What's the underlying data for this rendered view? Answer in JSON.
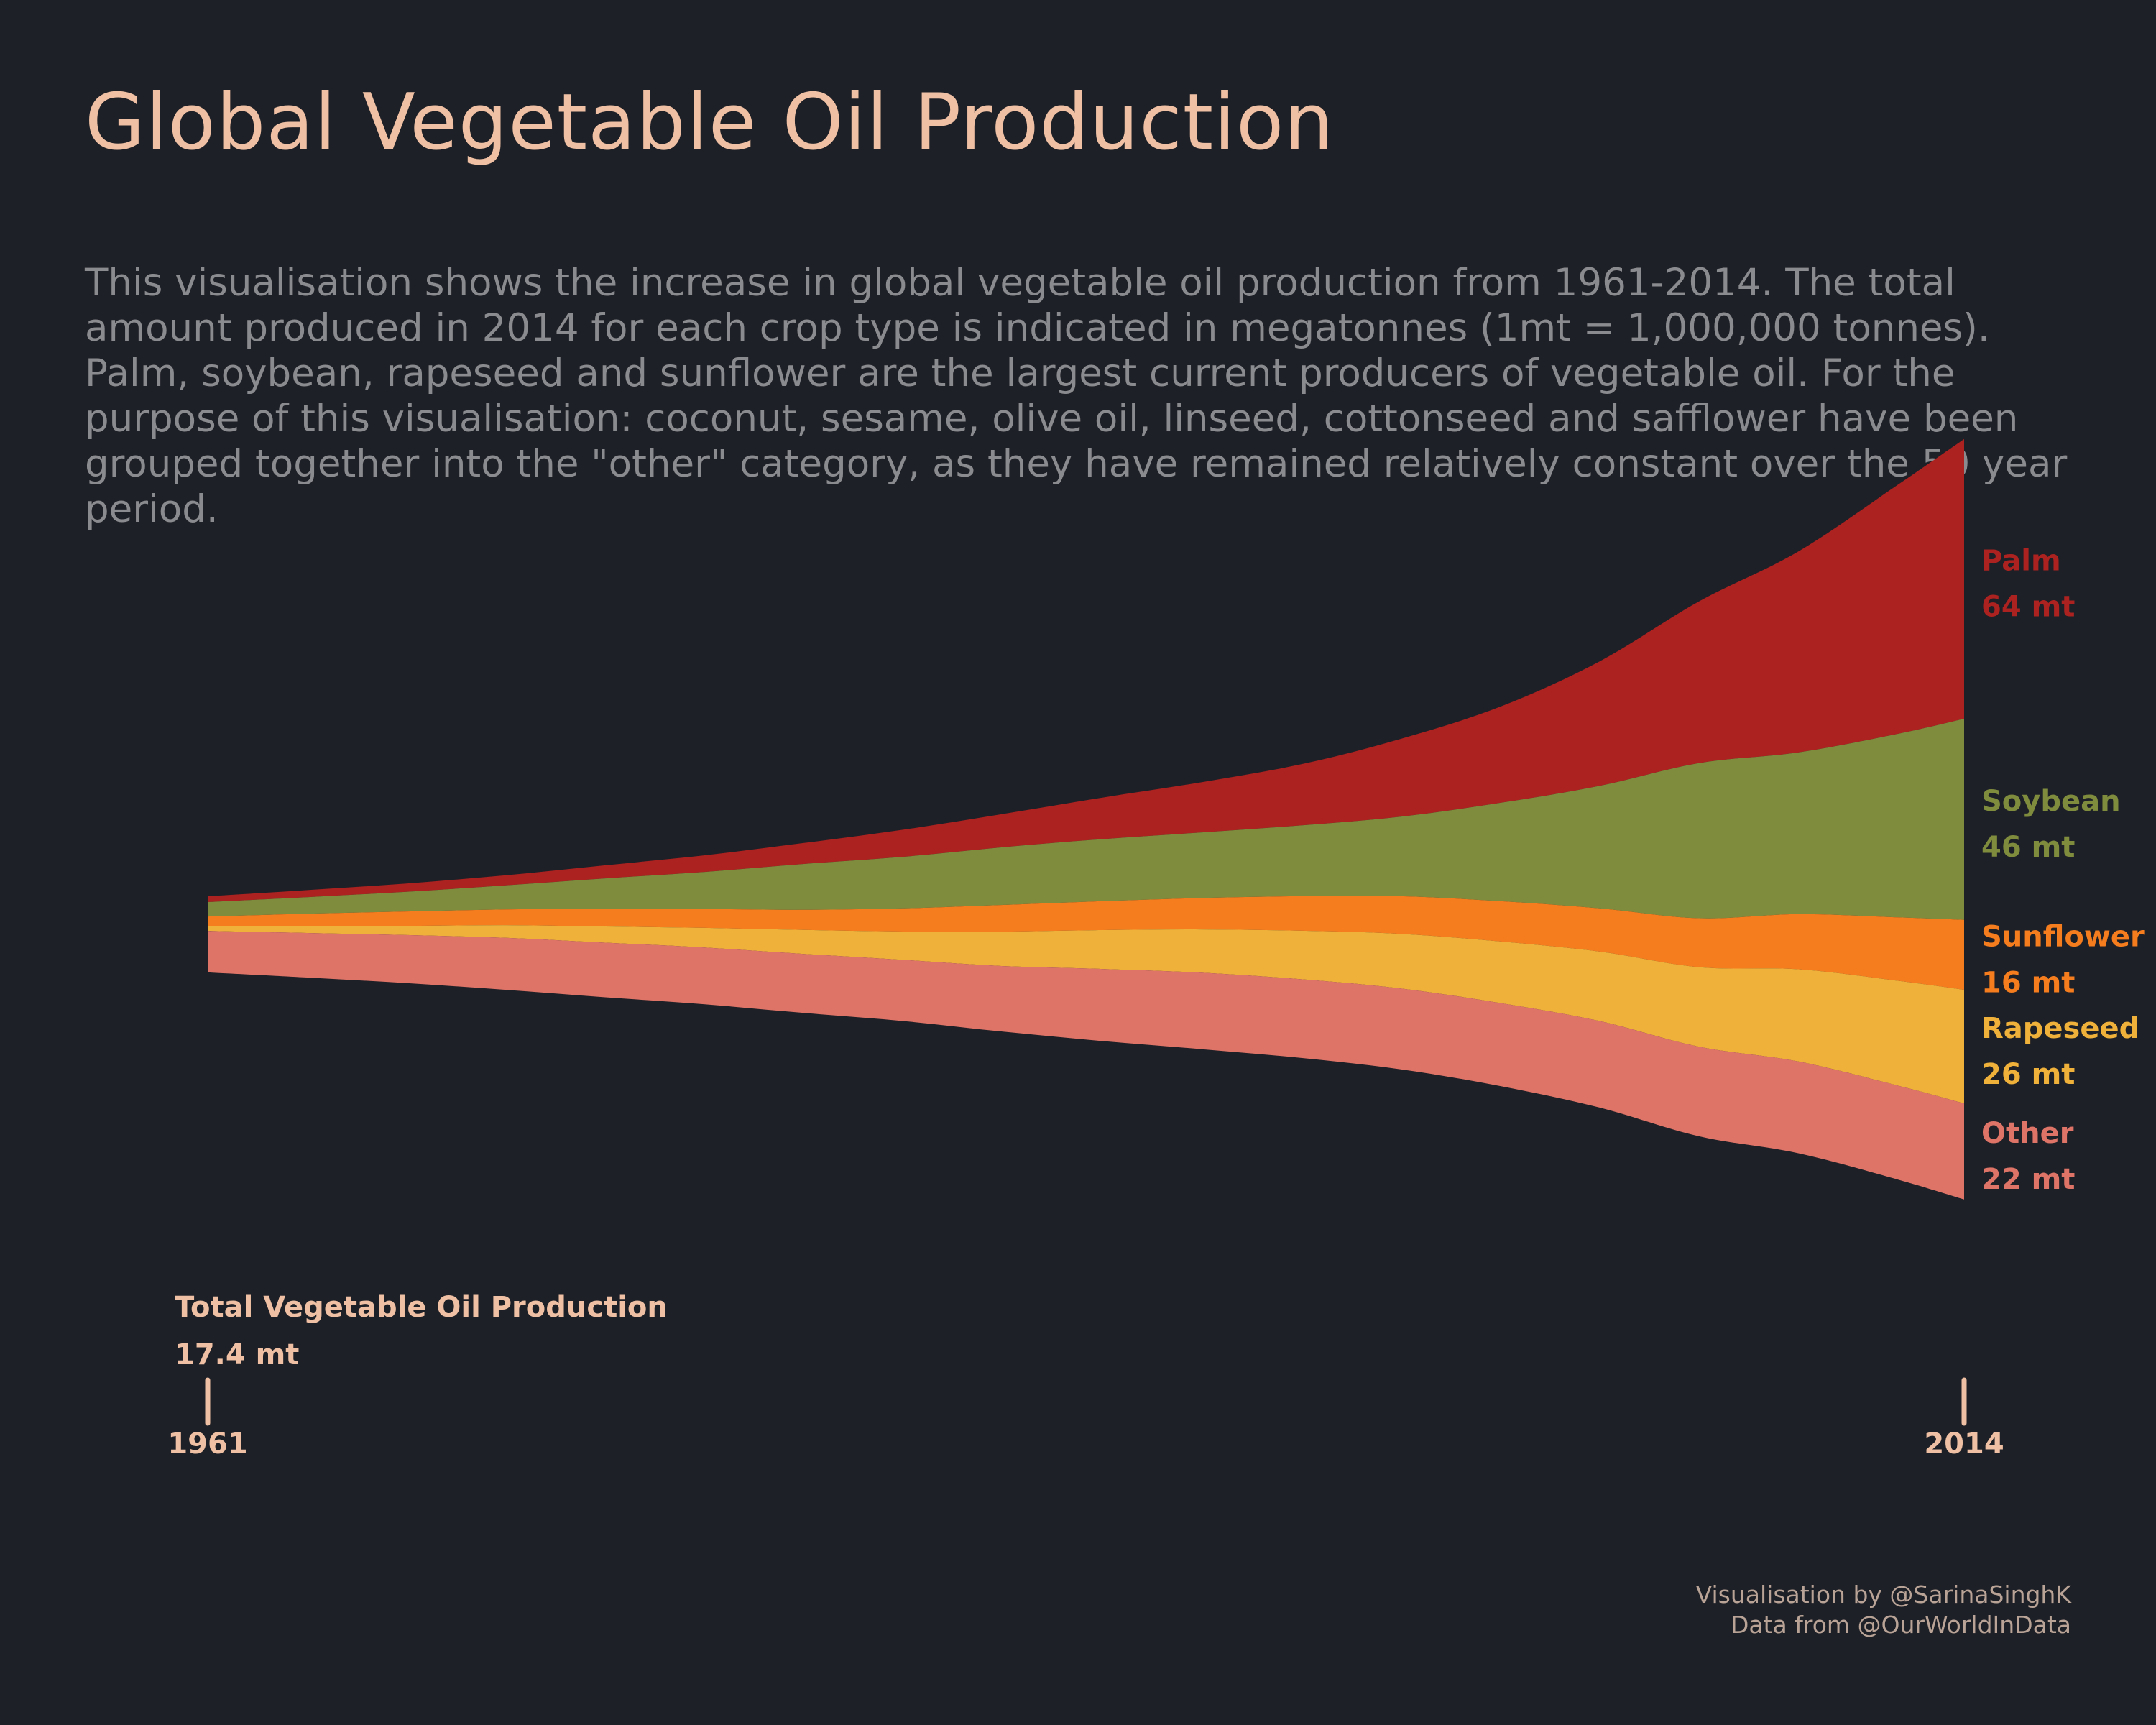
{
  "title": "Global Vegetable Oil Production",
  "subtitle": "This visualisation shows the increase in global vegetable oil production from 1961-2014. The total amount produced in 2014 for each crop type is indicated in megatonnes (1mt = 1,000,000 tonnes). Palm, soybean, rapeseed and sunflower are the largest current producers of vegetable oil. For the purpose of this visualisation: coconut, sesame, olive oil, linseed, cottonseed and safflower have been grouped together into the \"other\" category, as they have remained relatively constant over the 50 year period.",
  "credits": {
    "line1": "Visualisation by @SarinaSinghK",
    "line2": "Data from @OurWorldInData"
  },
  "colors": {
    "background": "#1e2027",
    "title": "#efc0a3",
    "subtitle": "#8a8b8f",
    "annotation": "#efc0a3"
  },
  "chart_data": {
    "type": "area",
    "stacking": "streamgraph",
    "x_ticks": [
      "1961",
      "2014"
    ],
    "annotation": {
      "label": "Total Vegetable Oil Production",
      "value": "17.4 mt"
    },
    "x": [
      1961,
      1964,
      1967,
      1970,
      1973,
      1976,
      1979,
      1982,
      1985,
      1988,
      1991,
      1994,
      1997,
      2000,
      2003,
      2006,
      2009,
      2012,
      2014
    ],
    "series": [
      {
        "name": "Palm",
        "label_value": "64 mt",
        "color": "#ab2220",
        "values": [
          1.3,
          1.6,
          1.9,
          2.3,
          3.0,
          3.8,
          4.8,
          6.2,
          7.6,
          9.5,
          11.5,
          14.0,
          17.8,
          22.0,
          28.5,
          37.0,
          46.0,
          57.0,
          64.0
        ]
      },
      {
        "name": "Soybean",
        "label_value": "46 mt",
        "color": "#7f8c3e",
        "values": [
          3.3,
          3.8,
          4.5,
          5.5,
          7.0,
          8.5,
          10.5,
          11.8,
          13.2,
          14.2,
          15.0,
          16.2,
          18.2,
          22.5,
          28.0,
          35.5,
          37.0,
          42.0,
          46.0
        ]
      },
      {
        "name": "Sunflower",
        "label_value": "16 mt",
        "color": "#f67d1e",
        "values": [
          2.2,
          2.8,
          3.3,
          3.6,
          4.0,
          4.3,
          4.6,
          5.3,
          6.1,
          6.6,
          7.2,
          7.9,
          8.6,
          9.2,
          9.9,
          11.2,
          12.6,
          14.5,
          16.0
        ]
      },
      {
        "name": "Rapeseed",
        "label_value": "26 mt",
        "color": "#f0b13a",
        "values": [
          1.1,
          1.6,
          2.1,
          2.9,
          3.7,
          4.5,
          5.5,
          6.5,
          7.9,
          8.9,
          9.9,
          11.1,
          12.5,
          14.1,
          15.9,
          18.2,
          21.1,
          24.0,
          26.0
        ]
      },
      {
        "name": "Other",
        "label_value": "22 mt",
        "color": "#de7468",
        "values": [
          9.5,
          10.2,
          11.0,
          11.9,
          12.5,
          13.0,
          13.5,
          14.0,
          15.0,
          16.5,
          17.5,
          18.0,
          18.5,
          19.0,
          19.8,
          20.5,
          21.0,
          21.5,
          22.0
        ]
      }
    ]
  }
}
